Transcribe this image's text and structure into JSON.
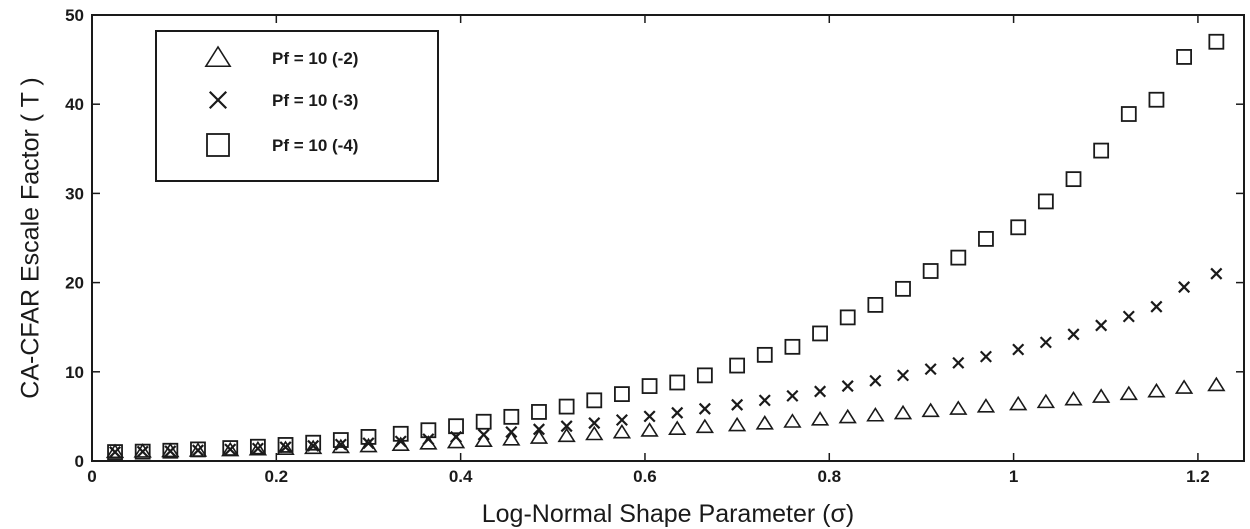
{
  "chart_data": {
    "type": "scatter",
    "xlabel": "Log-Normal Shape Parameter (σ)",
    "ylabel": "CA-CFAR Escale Factor ( T )",
    "xlim": [
      0,
      1.25
    ],
    "ylim": [
      0,
      50
    ],
    "xticks": [
      "0",
      "0.2",
      "0.4",
      "0.6",
      "0.8",
      "1",
      "1.2"
    ],
    "yticks": [
      "0",
      "10",
      "20",
      "30",
      "40",
      "50"
    ],
    "grid": false,
    "legend_position": "top-left",
    "x": [
      0.025,
      0.055,
      0.085,
      0.115,
      0.15,
      0.18,
      0.21,
      0.24,
      0.27,
      0.3,
      0.335,
      0.365,
      0.395,
      0.425,
      0.455,
      0.485,
      0.515,
      0.545,
      0.575,
      0.605,
      0.635,
      0.665,
      0.7,
      0.73,
      0.76,
      0.79,
      0.82,
      0.85,
      0.88,
      0.91,
      0.94,
      0.97,
      1.005,
      1.035,
      1.065,
      1.095,
      1.125,
      1.155,
      1.185,
      1.22
    ],
    "series": [
      {
        "name": "Pf = 10  (-2)",
        "marker": "triangle",
        "values": [
          1.0,
          1.05,
          1.1,
          1.15,
          1.2,
          1.3,
          1.35,
          1.45,
          1.55,
          1.65,
          1.8,
          1.95,
          2.1,
          2.25,
          2.4,
          2.6,
          2.8,
          3.0,
          3.2,
          3.4,
          3.6,
          3.8,
          4.0,
          4.2,
          4.4,
          4.65,
          4.9,
          5.1,
          5.35,
          5.6,
          5.85,
          6.1,
          6.35,
          6.6,
          6.9,
          7.2,
          7.5,
          7.8,
          8.2,
          8.5
        ]
      },
      {
        "name": "Pf = 10  (-3)",
        "marker": "x",
        "values": [
          1.0,
          1.05,
          1.1,
          1.2,
          1.3,
          1.4,
          1.55,
          1.7,
          1.85,
          2.0,
          2.2,
          2.45,
          2.7,
          2.95,
          3.25,
          3.55,
          3.9,
          4.25,
          4.6,
          5.0,
          5.4,
          5.85,
          6.3,
          6.8,
          7.3,
          7.8,
          8.4,
          9.0,
          9.6,
          10.3,
          11.0,
          11.7,
          12.5,
          13.3,
          14.2,
          15.2,
          16.2,
          17.3,
          19.5,
          21.0
        ]
      },
      {
        "name": "Pf = 10  (-4)",
        "marker": "square",
        "values": [
          1.0,
          1.05,
          1.15,
          1.3,
          1.45,
          1.6,
          1.8,
          2.05,
          2.35,
          2.7,
          3.05,
          3.45,
          3.9,
          4.4,
          4.95,
          5.5,
          6.1,
          6.8,
          7.5,
          8.4,
          8.8,
          9.6,
          10.7,
          11.9,
          12.8,
          14.3,
          16.1,
          17.5,
          19.3,
          21.3,
          22.8,
          24.9,
          26.2,
          29.1,
          31.6,
          34.8,
          38.9,
          40.5,
          45.3,
          47.0
        ]
      }
    ]
  }
}
